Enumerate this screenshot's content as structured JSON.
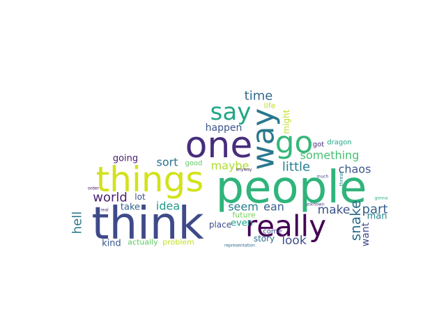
{
  "words": [
    {
      "text": "people",
      "color": "#2fb47c"
    },
    {
      "text": "think",
      "color": "#3e4a89"
    },
    {
      "text": "one",
      "color": "#472d7b"
    },
    {
      "text": "things",
      "color": "#d2e21b"
    },
    {
      "text": "really",
      "color": "#440154"
    },
    {
      "text": "way",
      "color": "#2a788e"
    },
    {
      "text": "go",
      "color": "#35b779"
    },
    {
      "text": "say",
      "color": "#21a685"
    },
    {
      "text": "time",
      "color": "#31688e"
    },
    {
      "text": "life",
      "color": "#bddf26"
    },
    {
      "text": "might",
      "color": "#bddf26"
    },
    {
      "text": "happen",
      "color": "#3b528b"
    },
    {
      "text": "something",
      "color": "#44bf70"
    },
    {
      "text": "got",
      "color": "#482878"
    },
    {
      "text": "dragon",
      "color": "#22a884"
    },
    {
      "text": "sort",
      "color": "#2c728e"
    },
    {
      "text": "good",
      "color": "#5ec962"
    },
    {
      "text": "maybe",
      "color": "#addc30"
    },
    {
      "text": "little",
      "color": "#26828e"
    },
    {
      "text": "chaos",
      "color": "#39568c"
    },
    {
      "text": "going",
      "color": "#481a6c"
    },
    {
      "text": "anyway",
      "color": "#482475"
    },
    {
      "text": "much",
      "color": "#414487"
    },
    {
      "text": "threat",
      "color": "#25858e"
    },
    {
      "text": "world",
      "color": "#481f70"
    },
    {
      "text": "lot",
      "color": "#3b528b"
    },
    {
      "text": "order",
      "color": "#46085c"
    },
    {
      "text": "idea",
      "color": "#1f9a8a"
    },
    {
      "text": "take",
      "color": "#33638d"
    },
    {
      "text": "real",
      "color": "#472c7a"
    },
    {
      "text": "hell",
      "color": "#2a788e"
    },
    {
      "text": "seem",
      "color": "#277f8e"
    },
    {
      "text": "ean",
      "color": "#355f8d"
    },
    {
      "text": "make",
      "color": "#3b528b"
    },
    {
      "text": "part",
      "color": "#35608d"
    },
    {
      "text": "unknown",
      "color": "#46337f"
    },
    {
      "text": "snake",
      "color": "#2e6e8e"
    },
    {
      "text": "man",
      "color": "#26828e"
    },
    {
      "text": "want",
      "color": "#3e4a89"
    },
    {
      "text": "gonna",
      "color": "#29af7f"
    },
    {
      "text": "place",
      "color": "#3e4a89"
    },
    {
      "text": "future",
      "color": "#75d054"
    },
    {
      "text": "even",
      "color": "#1f9e89"
    },
    {
      "text": "come",
      "color": "#3e4989"
    },
    {
      "text": "story",
      "color": "#2e6f8e"
    },
    {
      "text": "look",
      "color": "#3d4d8a"
    },
    {
      "text": "kind",
      "color": "#39568c"
    },
    {
      "text": "actually",
      "color": "#5ec962"
    },
    {
      "text": "problem",
      "color": "#c2df23"
    },
    {
      "text": "representation",
      "color": "#31688e"
    }
  ]
}
